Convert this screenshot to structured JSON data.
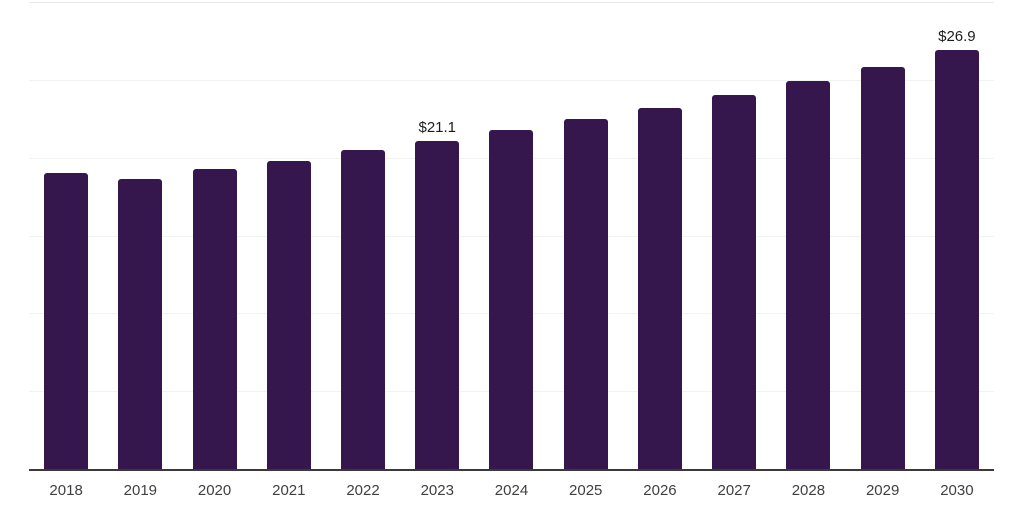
{
  "chart_data": {
    "type": "bar",
    "title": "",
    "xlabel": "",
    "ylabel": "",
    "categories": [
      "2018",
      "2019",
      "2020",
      "2021",
      "2022",
      "2023",
      "2024",
      "2025",
      "2026",
      "2027",
      "2028",
      "2029",
      "2030"
    ],
    "values": [
      19.0,
      18.6,
      19.3,
      19.8,
      20.5,
      21.1,
      21.8,
      22.5,
      23.2,
      24.0,
      24.9,
      25.8,
      26.9
    ],
    "data_labels": [
      "",
      "",
      "",
      "",
      "",
      "$21.1",
      "",
      "",
      "",
      "",
      "",
      "",
      "$26.9"
    ],
    "ylim": [
      0,
      30
    ],
    "grid_interval": 5,
    "grid": "horizontal, no y-axis tick labels, no legend",
    "legend_position": "none",
    "colors": {
      "bar": "#35164d",
      "grid": "#f2f2f2",
      "top_gridline": "#e8e8e8",
      "axis": "#3a3a3a",
      "tick_label": "#404040",
      "data_label": "#1c1c1c",
      "background": "#ffffff"
    }
  }
}
